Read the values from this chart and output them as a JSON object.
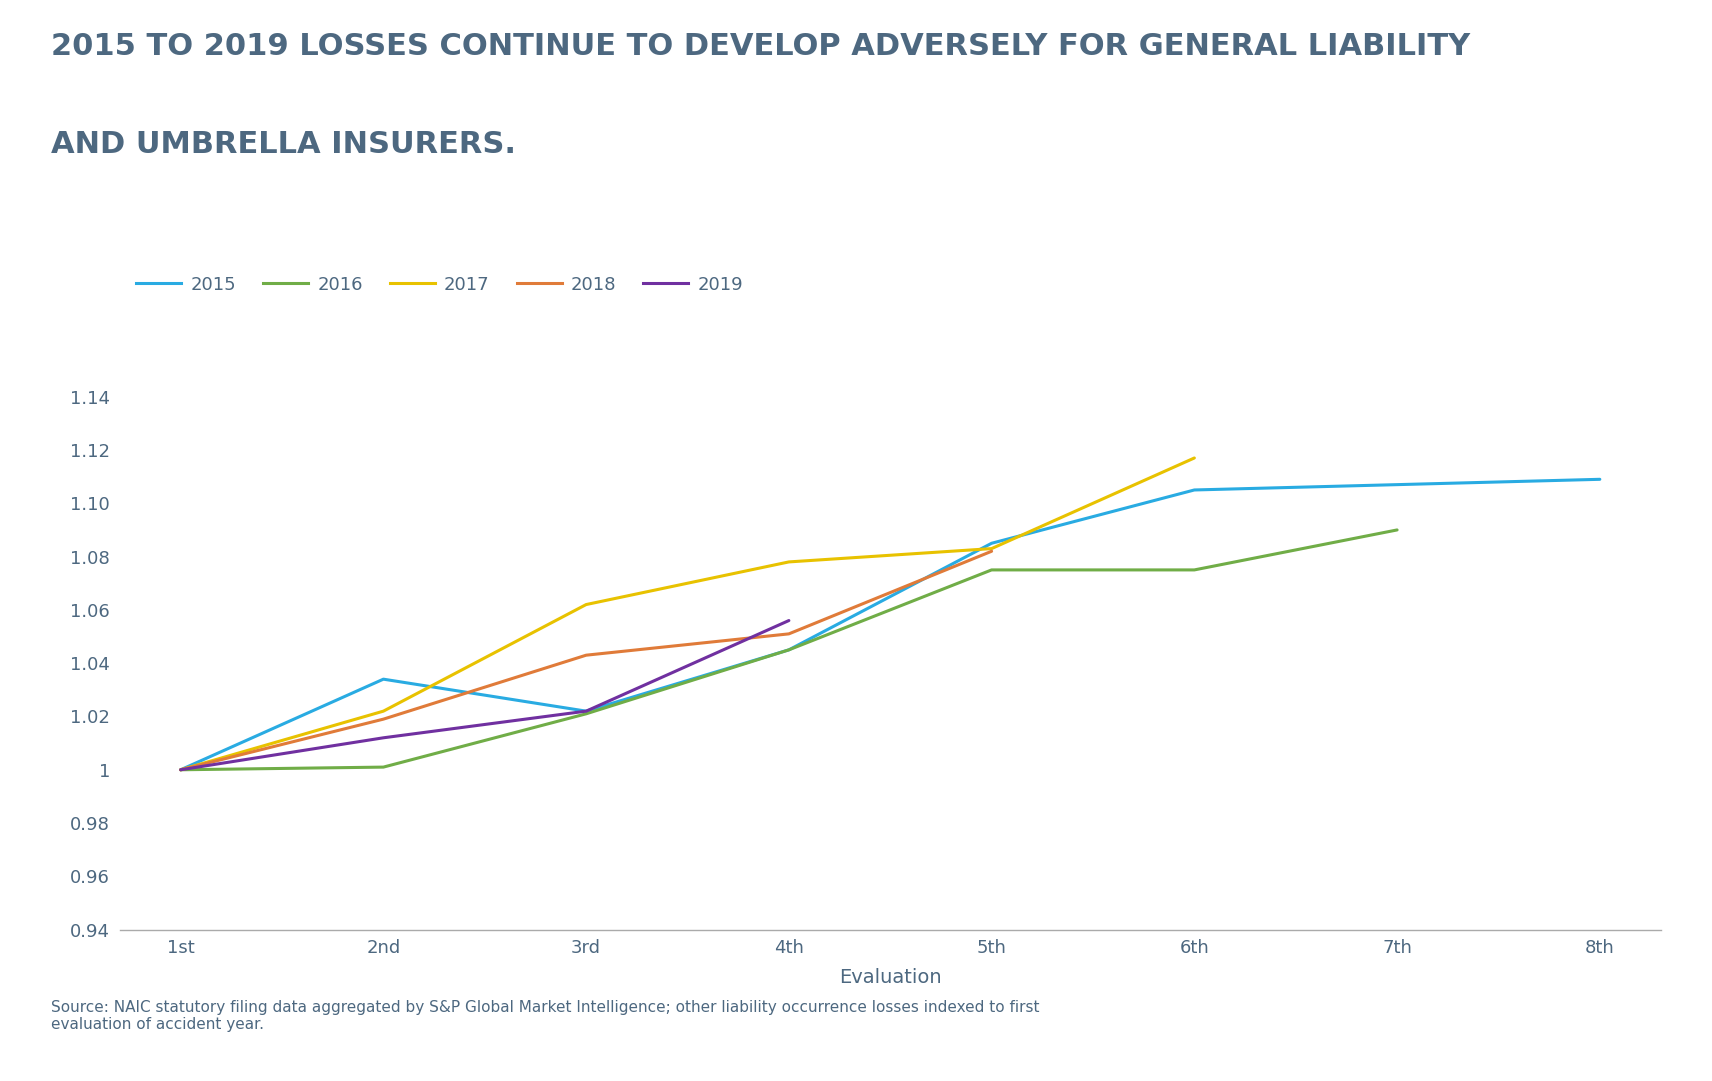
{
  "title_line1": "2015 TO 2019 LOSSES CONTINUE TO DEVELOP ADVERSELY FOR GENERAL LIABILITY",
  "title_line2": "AND UMBRELLA INSURERS.",
  "title_color": "#4d6880",
  "underline_color": "#29abe2",
  "xlabel": "Evaluation",
  "x_labels": [
    "1st",
    "2nd",
    "3rd",
    "4th",
    "5th",
    "6th",
    "7th",
    "8th"
  ],
  "ylim": [
    0.94,
    1.155
  ],
  "yticks": [
    0.94,
    0.96,
    0.98,
    1.0,
    1.02,
    1.04,
    1.06,
    1.08,
    1.1,
    1.12,
    1.14
  ],
  "source_text": "Source: NAIC statutory filing data aggregated by S&P Global Market Intelligence; other liability occurrence losses indexed to first\nevaluation of accident year.",
  "series": [
    {
      "label": "2015",
      "color": "#29abe2",
      "data": [
        1.0,
        1.034,
        1.022,
        1.045,
        1.085,
        1.105,
        1.107,
        1.109
      ]
    },
    {
      "label": "2016",
      "color": "#70ad47",
      "data": [
        1.0,
        1.001,
        1.021,
        1.045,
        1.075,
        1.075,
        1.09,
        null
      ]
    },
    {
      "label": "2017",
      "color": "#e8c200",
      "data": [
        1.0,
        1.022,
        1.062,
        1.078,
        1.083,
        1.117,
        null,
        null
      ]
    },
    {
      "label": "2018",
      "color": "#e07b39",
      "data": [
        1.0,
        1.019,
        1.043,
        1.051,
        1.082,
        null,
        null,
        null
      ]
    },
    {
      "label": "2019",
      "color": "#7030a0",
      "data": [
        1.0,
        1.012,
        1.022,
        1.056,
        null,
        null,
        null,
        null
      ]
    }
  ],
  "background_color": "#ffffff",
  "axis_color": "#aaaaaa",
  "tick_color": "#4d6880",
  "legend_fontsize": 13,
  "tick_fontsize": 13,
  "xlabel_fontsize": 14,
  "title_fontsize": 22,
  "source_fontsize": 11,
  "line_width": 2.2
}
